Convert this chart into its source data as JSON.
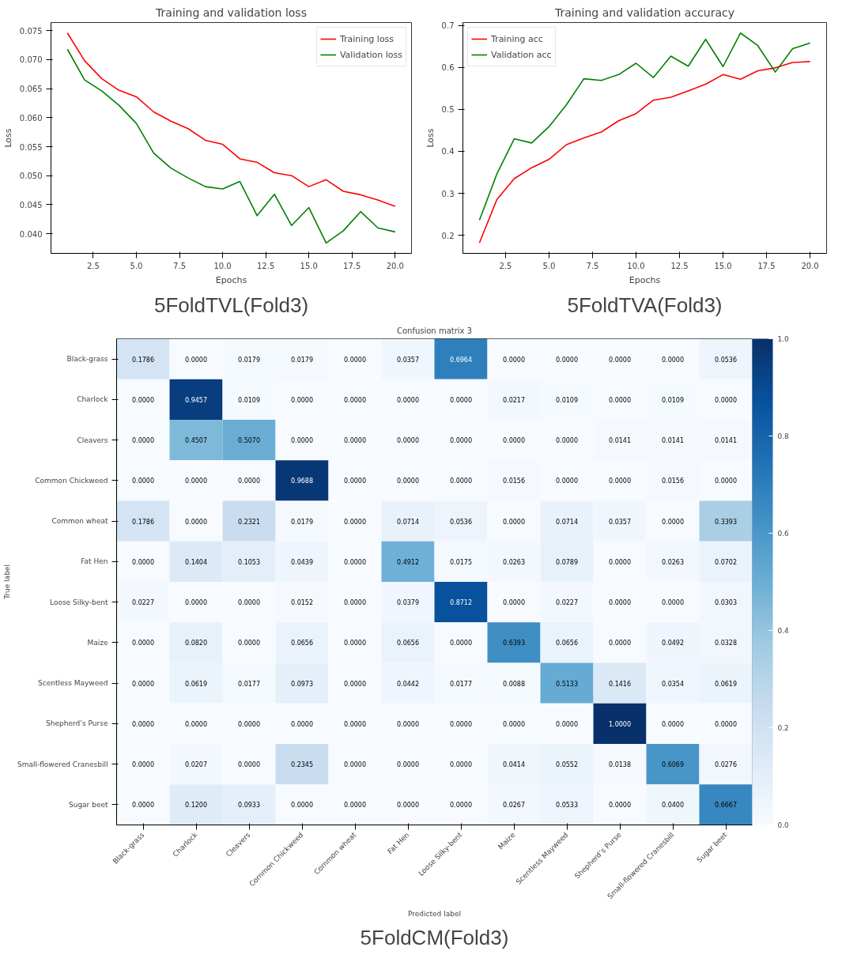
{
  "chart_data": [
    {
      "type": "line",
      "title": "Training and validation loss",
      "xlabel": "Epochs",
      "ylabel": "Loss",
      "annotations": [
        "5FoldTVL(Fold3)"
      ],
      "x": [
        1,
        2,
        3,
        4,
        5,
        6,
        7,
        8,
        9,
        10,
        11,
        12,
        13,
        14,
        15,
        16,
        17,
        18,
        19,
        20
      ],
      "series": [
        {
          "name": "Training loss",
          "color": "#ff0000",
          "values": [
            0.0746,
            0.0698,
            0.0667,
            0.0647,
            0.0636,
            0.061,
            0.0594,
            0.0581,
            0.0561,
            0.0554,
            0.0529,
            0.0523,
            0.0505,
            0.05,
            0.0481,
            0.0493,
            0.0473,
            0.0467,
            0.0458,
            0.0447
          ]
        },
        {
          "name": "Validation loss",
          "color": "#008000",
          "values": [
            0.0718,
            0.0665,
            0.0646,
            0.0621,
            0.059,
            0.0539,
            0.0513,
            0.0496,
            0.0481,
            0.0477,
            0.049,
            0.0431,
            0.0468,
            0.0414,
            0.0445,
            0.0384,
            0.0405,
            0.0438,
            0.041,
            0.0403
          ]
        }
      ],
      "xlim": [
        0.05,
        20.95
      ],
      "ylim": [
        0.0366,
        0.0764
      ],
      "xticks": [
        2.5,
        {
          "value": 5,
          "label": "5.0"
        },
        7.5,
        {
          "value": 10,
          "label": "10.0"
        },
        12.5,
        {
          "value": 15,
          "label": "15.0"
        },
        17.5,
        {
          "value": 20,
          "label": "20.0"
        }
      ],
      "yticks": [
        {
          "value": 0.04,
          "label": "0.040"
        },
        0.045,
        {
          "value": 0.05,
          "label": "0.050"
        },
        0.055,
        {
          "value": 0.06,
          "label": "0.060"
        },
        0.065,
        {
          "value": 0.07,
          "label": "0.070"
        },
        0.075
      ],
      "legend": "top right",
      "grid": false,
      "line_style": "solid"
    },
    {
      "type": "line",
      "title": "Training and validation accuracy",
      "xlabel": "Epochs",
      "ylabel": "Loss",
      "annotations": [
        "5FoldTVA(Fold3)"
      ],
      "x": [
        1,
        2,
        3,
        4,
        5,
        6,
        7,
        8,
        9,
        10,
        11,
        12,
        13,
        14,
        15,
        16,
        17,
        18,
        19,
        20
      ],
      "series": [
        {
          "name": "Training acc",
          "color": "#ff0000",
          "values": [
            0.182,
            0.285,
            0.335,
            0.361,
            0.381,
            0.416,
            0.432,
            0.446,
            0.473,
            0.49,
            0.522,
            0.529,
            0.544,
            0.56,
            0.583,
            0.572,
            0.592,
            0.599,
            0.612,
            0.614
          ]
        },
        {
          "name": "Validation acc",
          "color": "#008000",
          "values": [
            0.236,
            0.346,
            0.43,
            0.42,
            0.459,
            0.511,
            0.573,
            0.569,
            0.583,
            0.61,
            0.576,
            0.627,
            0.603,
            0.667,
            0.602,
            0.682,
            0.652,
            0.589,
            0.645,
            0.658
          ]
        }
      ],
      "xlim": [
        0.05,
        20.95
      ],
      "ylim": [
        0.157,
        0.707
      ],
      "xticks": [
        2.5,
        {
          "value": 5,
          "label": "5.0"
        },
        7.5,
        {
          "value": 10,
          "label": "10.0"
        },
        12.5,
        {
          "value": 15,
          "label": "15.0"
        },
        17.5,
        {
          "value": 20,
          "label": "20.0"
        }
      ],
      "yticks": [
        0.2,
        0.3,
        0.4,
        0.5,
        0.6,
        0.7
      ],
      "legend": "top left",
      "grid": false,
      "line_style": "solid"
    },
    {
      "type": "heatmap",
      "title": "Confusion matrix 3",
      "xlabel": "Predicted label",
      "ylabel": "True label",
      "annotations": [
        "5FoldCM(Fold3)"
      ],
      "categories": [
        "Black-grass",
        "Charlock",
        "Cleavers",
        "Common Chickweed",
        "Common wheat",
        "Fat Hen",
        "Loose Silky-bent",
        "Maize",
        "Scentless Mayweed",
        "Shepherd’s Purse",
        "Small-flowered Cranesbill",
        "Sugar beet"
      ],
      "y_categories": [
        "Black-grass",
        "Charlock",
        "Cleavers",
        "Common Chickweed",
        "Common wheat",
        "Fat Hen",
        "Loose Silky-bent",
        "Maize",
        "Scentless Mayweed",
        "Shepherd’s Purse",
        "Small-flowered Cranesbill",
        "Sugar beet"
      ],
      "cells": [
        [
          0.1786,
          0,
          0.0179,
          0.0179,
          0,
          0.0357,
          0.6964,
          0,
          0,
          0,
          0,
          0.0536
        ],
        [
          0,
          0.9457,
          0.0109,
          0,
          0,
          0,
          0,
          0.0217,
          0.0109,
          0,
          0.0109,
          0
        ],
        [
          0,
          0.4507,
          0.507,
          0,
          0,
          0,
          0,
          0,
          0,
          0.0141,
          0.0141,
          0.0141
        ],
        [
          0,
          0,
          0,
          0.9688,
          0,
          0,
          0,
          0.0156,
          0,
          0,
          0.0156,
          0
        ],
        [
          0.1786,
          0,
          0.2321,
          0.0179,
          0,
          0.0714,
          0.0536,
          0,
          0.0714,
          0.0357,
          0,
          0.3393
        ],
        [
          0,
          0.1404,
          0.1053,
          0.0439,
          0,
          0.4912,
          0.0175,
          0.0263,
          0.0789,
          0,
          0.0263,
          0.0702
        ],
        [
          0.0227,
          0,
          0,
          0.0152,
          0,
          0.0379,
          0.8712,
          0,
          0.0227,
          0,
          0,
          0.0303
        ],
        [
          0,
          0.082,
          0,
          0.0656,
          0,
          0.0656,
          0,
          0.6393,
          0.0656,
          0,
          0.0492,
          0.0328
        ],
        [
          0,
          0.0619,
          0.0177,
          0.0973,
          0,
          0.0442,
          0.0177,
          0.0088,
          0.5133,
          0.1416,
          0.0354,
          0.0619
        ],
        [
          0,
          0,
          0,
          0,
          0,
          0,
          0,
          0,
          0,
          1,
          0,
          0
        ],
        [
          0,
          0.0207,
          0,
          0.2345,
          0,
          0,
          0,
          0.0414,
          0.0552,
          0.0138,
          0.6069,
          0.0276
        ],
        [
          0,
          0.12,
          0.0933,
          0,
          0,
          0,
          0,
          0.0267,
          0.0533,
          0,
          0.04,
          0.6667
        ]
      ],
      "cell_labels": [
        [
          "0.1786",
          "0.0000",
          "0.0179",
          "0.0179",
          "0.0000",
          "0.0357",
          "0.6964",
          "0.0000",
          "0.0000",
          "0.0000",
          "0.0000",
          "0.0536"
        ],
        [
          "0.0000",
          "0.9457",
          "0.0109",
          "0.0000",
          "0.0000",
          "0.0000",
          "0.0000",
          "0.0217",
          "0.0109",
          "0.0000",
          "0.0109",
          "0.0000"
        ],
        [
          "0.0000",
          "0.4507",
          "0.5070",
          "0.0000",
          "0.0000",
          "0.0000",
          "0.0000",
          "0.0000",
          "0.0000",
          "0.0141",
          "0.0141",
          "0.0141"
        ],
        [
          "0.0000",
          "0.0000",
          "0.0000",
          "0.9688",
          "0.0000",
          "0.0000",
          "0.0000",
          "0.0156",
          "0.0000",
          "0.0000",
          "0.0156",
          "0.0000"
        ],
        [
          "0.1786",
          "0.0000",
          "0.2321",
          "0.0179",
          "0.0000",
          "0.0714",
          "0.0536",
          "0.0000",
          "0.0714",
          "0.0357",
          "0.0000",
          "0.3393"
        ],
        [
          "0.0000",
          "0.1404",
          "0.1053",
          "0.0439",
          "0.0000",
          "0.4912",
          "0.0175",
          "0.0263",
          "0.0789",
          "0.0000",
          "0.0263",
          "0.0702"
        ],
        [
          "0.0227",
          "0.0000",
          "0.0000",
          "0.0152",
          "0.0000",
          "0.0379",
          "0.8712",
          "0.0000",
          "0.0227",
          "0.0000",
          "0.0000",
          "0.0303"
        ],
        [
          "0.0000",
          "0.0820",
          "0.0000",
          "0.0656",
          "0.0000",
          "0.0656",
          "0.0000",
          "0.6393",
          "0.0656",
          "0.0000",
          "0.0492",
          "0.0328"
        ],
        [
          "0.0000",
          "0.0619",
          "0.0177",
          "0.0973",
          "0.0000",
          "0.0442",
          "0.0177",
          "0.0088",
          "0.5133",
          "0.1416",
          "0.0354",
          "0.0619"
        ],
        [
          "0.0000",
          "0.0000",
          "0.0000",
          "0.0000",
          "0.0000",
          "0.0000",
          "0.0000",
          "0.0000",
          "0.0000",
          "1.0000",
          "0.0000",
          "0.0000"
        ],
        [
          "0.0000",
          "0.0207",
          "0.0000",
          "0.2345",
          "0.0000",
          "0.0000",
          "0.0000",
          "0.0414",
          "0.0552",
          "0.0138",
          "0.6069",
          "0.0276"
        ],
        [
          "0.0000",
          "0.1200",
          "0.0933",
          "0.0000",
          "0.0000",
          "0.0000",
          "0.0000",
          "0.0267",
          "0.0533",
          "0.0000",
          "0.0400",
          "0.6667"
        ]
      ],
      "clim": [
        0,
        1
      ],
      "cticks": [
        {
          "value": 0,
          "label": "0.0"
        },
        0.2,
        0.4,
        0.6,
        0.8,
        {
          "value": 1,
          "label": "1.0"
        }
      ]
    }
  ]
}
